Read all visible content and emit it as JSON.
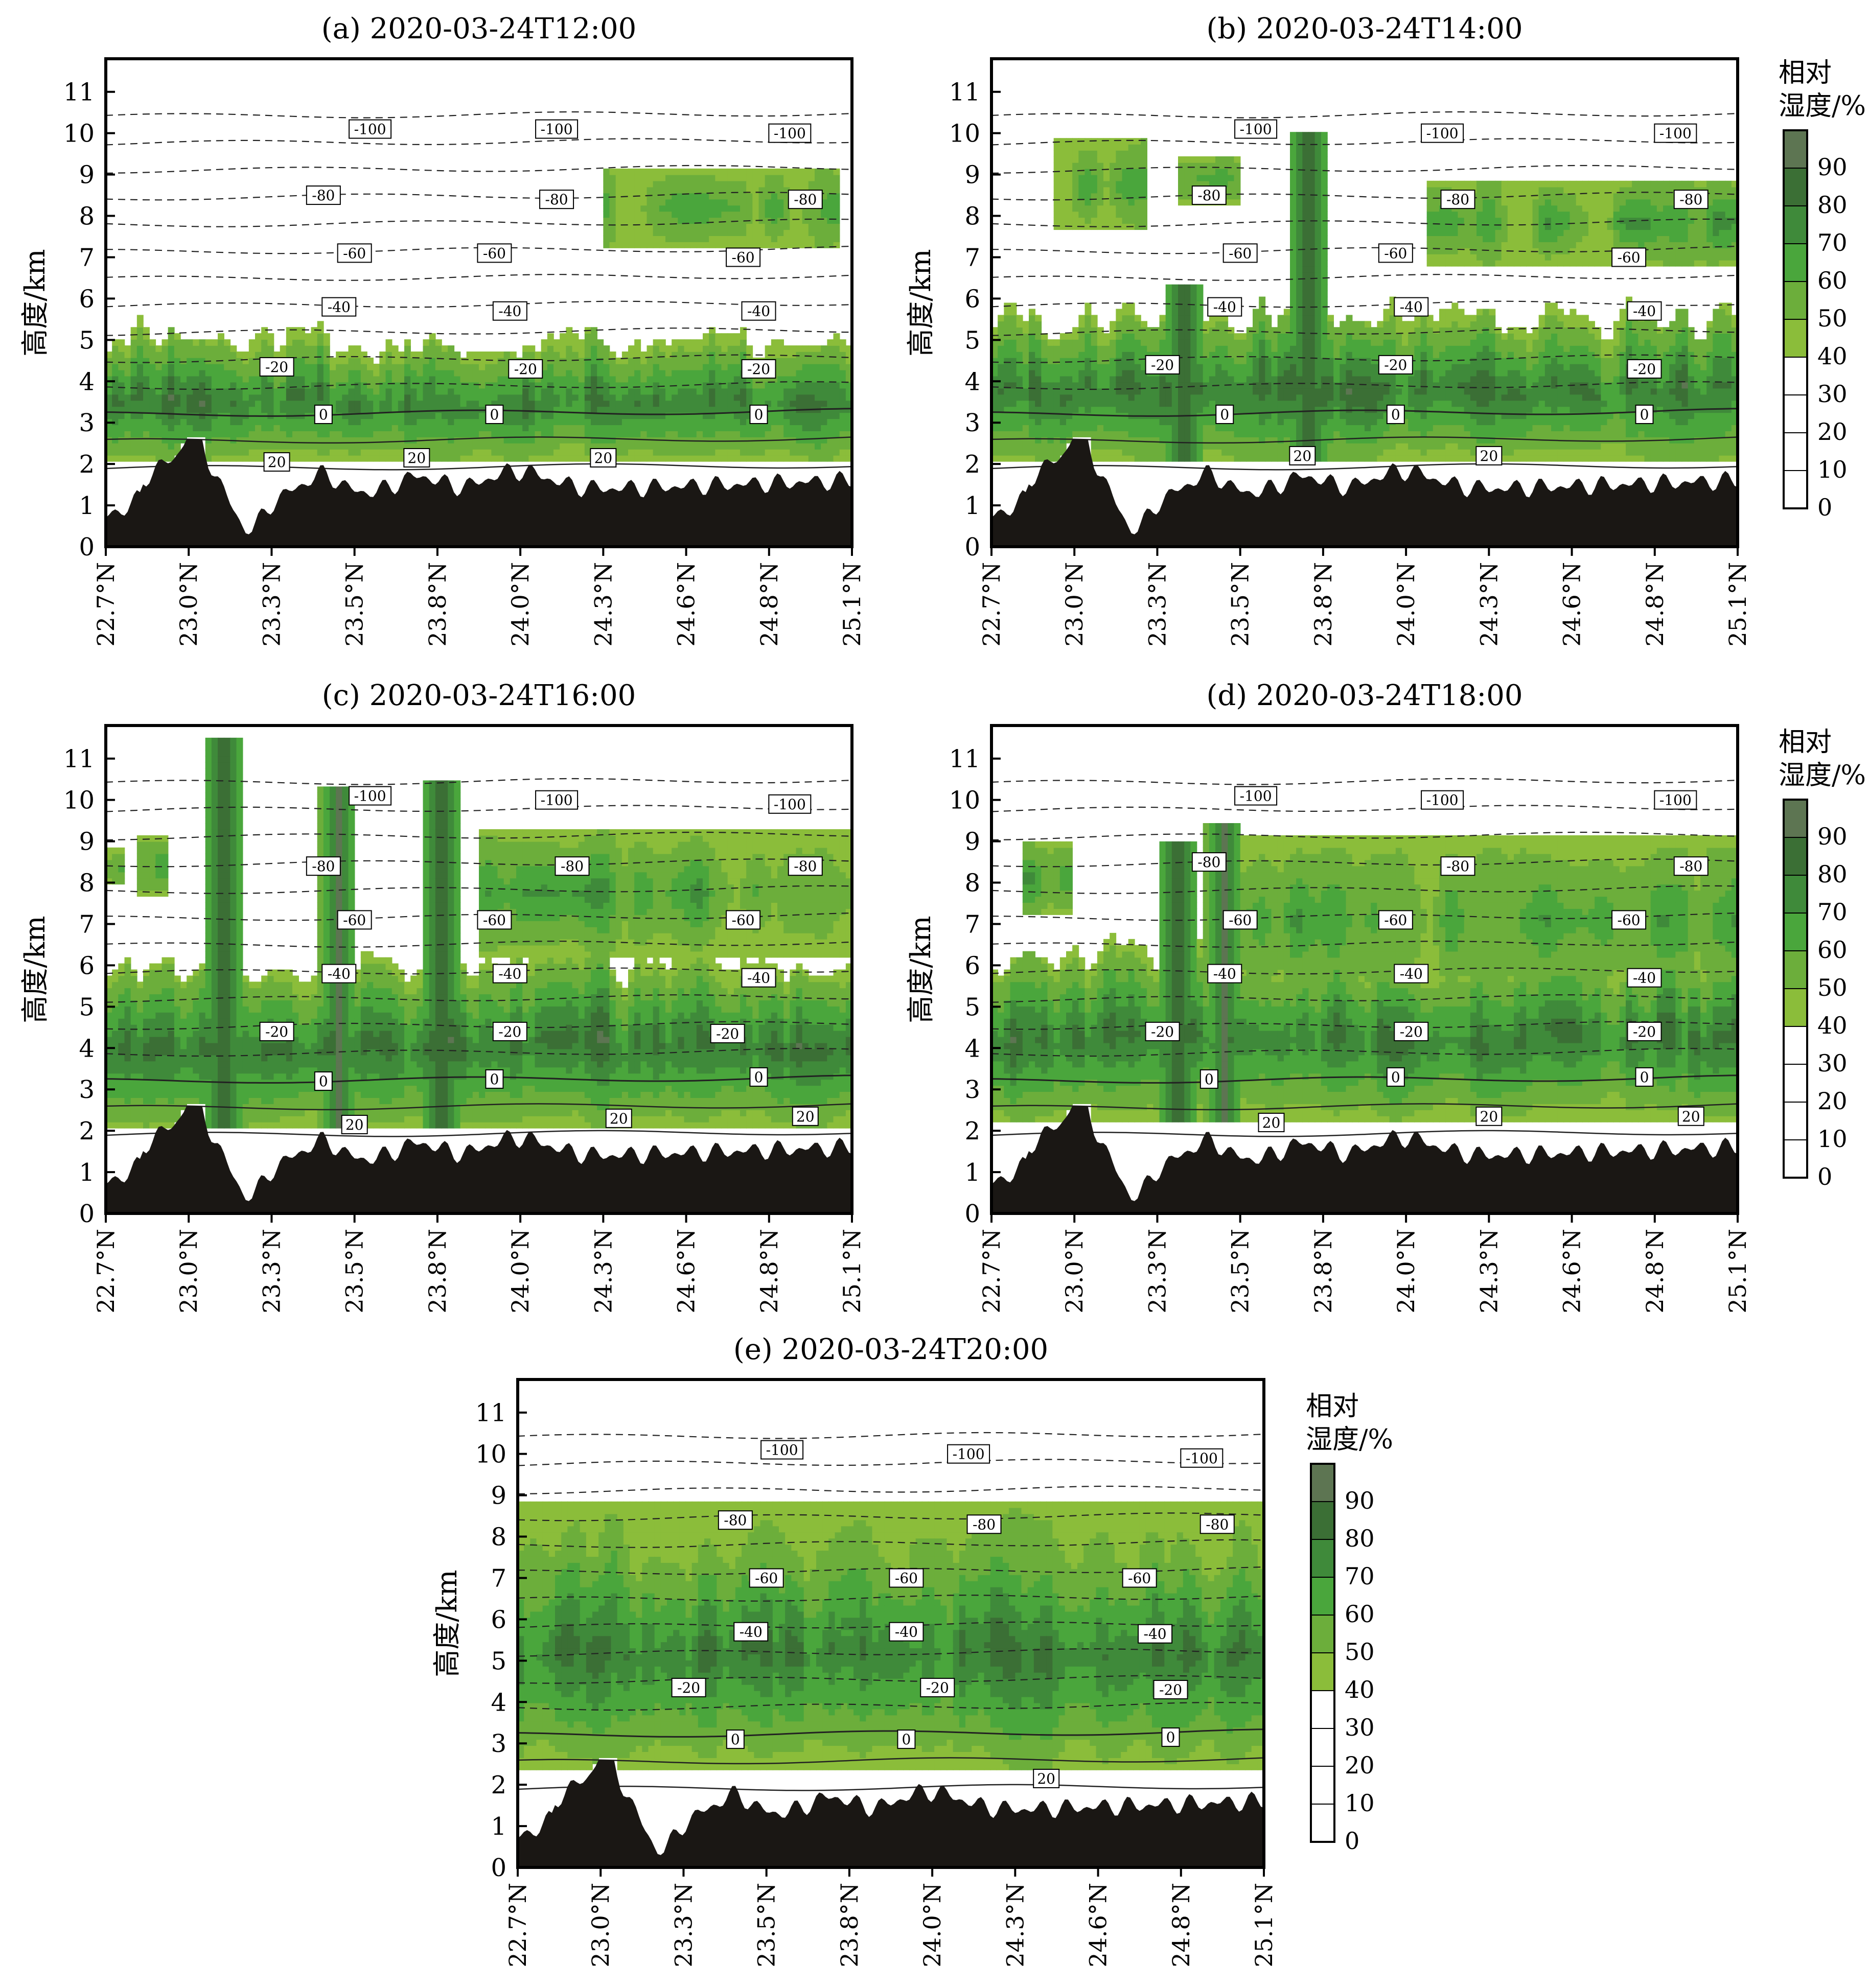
{
  "figure": {
    "colorbar_title_line1": "相对",
    "colorbar_title_line2": "湿度/%"
  },
  "colors": {
    "terrain": "#1a1714",
    "rh_bins": [
      "#ffffff",
      "#ffffff",
      "#ffffff",
      "#ffffff",
      "#8bbd3a",
      "#6cae3b",
      "#4aa63c",
      "#3f8a3a",
      "#3b6f35",
      "#5d7552"
    ]
  },
  "chart_data": [
    {
      "type": "contourf",
      "panel_id": "a",
      "title": "(a) 2020-03-24T12:00",
      "ylabel": "高度/km",
      "xlabel": "",
      "x_ticks": [
        "22.7°N",
        "23.0°N",
        "23.3°N",
        "23.5°N",
        "23.8°N",
        "24.0°N",
        "24.3°N",
        "24.6°N",
        "24.8°N",
        "25.1°N"
      ],
      "y_ticks": [
        0,
        1,
        2,
        3,
        4,
        5,
        6,
        7,
        8,
        9,
        10,
        11
      ],
      "xlim": [
        22.7,
        25.1
      ],
      "ylim": [
        0,
        11.8
      ],
      "colorbar": {
        "label": "相对湿度/%",
        "levels": [
          0,
          10,
          20,
          30,
          40,
          50,
          60,
          70,
          80,
          90,
          100
        ]
      },
      "temperature_contours_C": [
        20,
        0,
        -20,
        -40,
        -60,
        -80,
        -100
      ],
      "temperature_labels": [
        {
          "value": "-100",
          "x": 23.55,
          "z": 10.1
        },
        {
          "value": "-100",
          "x": 24.15,
          "z": 10.1
        },
        {
          "value": "-100",
          "x": 24.9,
          "z": 10.0
        },
        {
          "value": "-80",
          "x": 23.4,
          "z": 8.5
        },
        {
          "value": "-80",
          "x": 24.15,
          "z": 8.4
        },
        {
          "value": "-80",
          "x": 24.95,
          "z": 8.4
        },
        {
          "value": "-60",
          "x": 23.5,
          "z": 7.1
        },
        {
          "value": "-60",
          "x": 23.95,
          "z": 7.1
        },
        {
          "value": "-60",
          "x": 24.75,
          "z": 7.0
        },
        {
          "value": "-40",
          "x": 23.45,
          "z": 5.8
        },
        {
          "value": "-40",
          "x": 24.0,
          "z": 5.7
        },
        {
          "value": "-40",
          "x": 24.8,
          "z": 5.7
        },
        {
          "value": "-20",
          "x": 23.25,
          "z": 4.35
        },
        {
          "value": "-20",
          "x": 24.05,
          "z": 4.3
        },
        {
          "value": "-20",
          "x": 24.8,
          "z": 4.3
        },
        {
          "value": "0",
          "x": 23.4,
          "z": 3.2
        },
        {
          "value": "0",
          "x": 23.95,
          "z": 3.2
        },
        {
          "value": "0",
          "x": 24.8,
          "z": 3.2
        },
        {
          "value": "20",
          "x": 23.25,
          "z": 2.05
        },
        {
          "value": "20",
          "x": 23.7,
          "z": 2.15
        },
        {
          "value": "20",
          "x": 24.3,
          "z": 2.15
        }
      ],
      "moist_layer_km": [
        2.0,
        5.0
      ],
      "upper_moist_patches": [
        {
          "lat": [
            24.3,
            25.05
          ],
          "z": [
            7.2,
            9.2
          ]
        }
      ],
      "deep_convection": []
    },
    {
      "type": "contourf",
      "panel_id": "b",
      "title": "(b) 2020-03-24T14:00",
      "ylabel": "高度/km",
      "xlabel": "",
      "x_ticks": [
        "22.7°N",
        "23.0°N",
        "23.3°N",
        "23.5°N",
        "23.8°N",
        "24.0°N",
        "24.3°N",
        "24.6°N",
        "24.8°N",
        "25.1°N"
      ],
      "y_ticks": [
        0,
        1,
        2,
        3,
        4,
        5,
        6,
        7,
        8,
        9,
        10,
        11
      ],
      "xlim": [
        22.7,
        25.1
      ],
      "ylim": [
        0,
        11.8
      ],
      "colorbar": {
        "label": "相对湿度/%",
        "levels": [
          0,
          10,
          20,
          30,
          40,
          50,
          60,
          70,
          80,
          90,
          100
        ]
      },
      "temperature_contours_C": [
        20,
        0,
        -20,
        -40,
        -60,
        -80,
        -100
      ],
      "temperature_labels": [
        {
          "value": "-100",
          "x": 23.55,
          "z": 10.1
        },
        {
          "value": "-100",
          "x": 24.15,
          "z": 10.0
        },
        {
          "value": "-100",
          "x": 24.9,
          "z": 10.0
        },
        {
          "value": "-80",
          "x": 23.4,
          "z": 8.5
        },
        {
          "value": "-80",
          "x": 24.2,
          "z": 8.4
        },
        {
          "value": "-80",
          "x": 24.95,
          "z": 8.4
        },
        {
          "value": "-60",
          "x": 23.5,
          "z": 7.1
        },
        {
          "value": "-60",
          "x": 24.0,
          "z": 7.1
        },
        {
          "value": "-60",
          "x": 24.75,
          "z": 7.0
        },
        {
          "value": "-40",
          "x": 23.45,
          "z": 5.8
        },
        {
          "value": "-40",
          "x": 24.05,
          "z": 5.8
        },
        {
          "value": "-40",
          "x": 24.8,
          "z": 5.7
        },
        {
          "value": "-20",
          "x": 23.25,
          "z": 4.4
        },
        {
          "value": "-20",
          "x": 24.0,
          "z": 4.4
        },
        {
          "value": "-20",
          "x": 24.8,
          "z": 4.3
        },
        {
          "value": "0",
          "x": 23.45,
          "z": 3.2
        },
        {
          "value": "0",
          "x": 24.0,
          "z": 3.2
        },
        {
          "value": "0",
          "x": 24.8,
          "z": 3.2
        },
        {
          "value": "20",
          "x": 23.7,
          "z": 2.2
        },
        {
          "value": "20",
          "x": 24.3,
          "z": 2.2
        }
      ],
      "moist_layer_km": [
        2.0,
        5.5
      ],
      "upper_moist_patches": [
        {
          "lat": [
            22.9,
            23.2
          ],
          "z": [
            7.6,
            9.9
          ]
        },
        {
          "lat": [
            23.3,
            23.5
          ],
          "z": [
            8.3,
            9.5
          ]
        },
        {
          "lat": [
            24.1,
            25.1
          ],
          "z": [
            6.8,
            8.9
          ]
        }
      ],
      "deep_convection": [
        {
          "lat": 23.72,
          "top_km": 10.1
        },
        {
          "lat": 23.32,
          "top_km": 6.4
        }
      ]
    },
    {
      "type": "contourf",
      "panel_id": "c",
      "title": "(c) 2020-03-24T16:00",
      "ylabel": "高度/km",
      "xlabel": "",
      "x_ticks": [
        "22.7°N",
        "23.0°N",
        "23.3°N",
        "23.5°N",
        "23.8°N",
        "24.0°N",
        "24.3°N",
        "24.6°N",
        "24.8°N",
        "25.1°N"
      ],
      "y_ticks": [
        0,
        1,
        2,
        3,
        4,
        5,
        6,
        7,
        8,
        9,
        10,
        11
      ],
      "xlim": [
        22.7,
        25.1
      ],
      "ylim": [
        0,
        11.8
      ],
      "colorbar": {
        "label": "相对湿度/%",
        "levels": [
          0,
          10,
          20,
          30,
          40,
          50,
          60,
          70,
          80,
          90,
          100
        ]
      },
      "temperature_contours_C": [
        20,
        0,
        -20,
        -40,
        -60,
        -80,
        -100
      ],
      "temperature_labels": [
        {
          "value": "-100",
          "x": 23.55,
          "z": 10.1
        },
        {
          "value": "-100",
          "x": 24.15,
          "z": 10.0
        },
        {
          "value": "-100",
          "x": 24.9,
          "z": 9.9
        },
        {
          "value": "-80",
          "x": 23.4,
          "z": 8.4
        },
        {
          "value": "-80",
          "x": 24.2,
          "z": 8.4
        },
        {
          "value": "-80",
          "x": 24.95,
          "z": 8.4
        },
        {
          "value": "-60",
          "x": 23.5,
          "z": 7.1
        },
        {
          "value": "-60",
          "x": 23.95,
          "z": 7.1
        },
        {
          "value": "-60",
          "x": 24.75,
          "z": 7.1
        },
        {
          "value": "-40",
          "x": 23.45,
          "z": 5.8
        },
        {
          "value": "-40",
          "x": 24.0,
          "z": 5.8
        },
        {
          "value": "-40",
          "x": 24.8,
          "z": 5.7
        },
        {
          "value": "-20",
          "x": 23.25,
          "z": 4.4
        },
        {
          "value": "-20",
          "x": 24.0,
          "z": 4.4
        },
        {
          "value": "-20",
          "x": 24.7,
          "z": 4.35
        },
        {
          "value": "0",
          "x": 23.4,
          "z": 3.2
        },
        {
          "value": "0",
          "x": 23.95,
          "z": 3.25
        },
        {
          "value": "0",
          "x": 24.8,
          "z": 3.3
        },
        {
          "value": "20",
          "x": 23.5,
          "z": 2.15
        },
        {
          "value": "20",
          "x": 24.35,
          "z": 2.3
        },
        {
          "value": "20",
          "x": 24.95,
          "z": 2.35
        }
      ],
      "moist_layer_km": [
        2.0,
        6.0
      ],
      "upper_moist_patches": [
        {
          "lat": [
            22.7,
            22.75
          ],
          "z": [
            7.9,
            8.8
          ]
        },
        {
          "lat": [
            22.8,
            22.9
          ],
          "z": [
            7.7,
            9.1
          ]
        },
        {
          "lat": [
            23.9,
            25.1
          ],
          "z": [
            6.2,
            9.3
          ]
        }
      ],
      "deep_convection": [
        {
          "lat": 23.08,
          "top_km": 11.5
        },
        {
          "lat": 23.45,
          "top_km": 10.3
        },
        {
          "lat": 23.78,
          "top_km": 10.4
        }
      ]
    },
    {
      "type": "contourf",
      "panel_id": "d",
      "title": "(d) 2020-03-24T18:00",
      "ylabel": "高度/km",
      "xlabel": "",
      "x_ticks": [
        "22.7°N",
        "23.0°N",
        "23.3°N",
        "23.5°N",
        "23.8°N",
        "24.0°N",
        "24.3°N",
        "24.6°N",
        "24.8°N",
        "25.1°N"
      ],
      "y_ticks": [
        0,
        1,
        2,
        3,
        4,
        5,
        6,
        7,
        8,
        9,
        10,
        11
      ],
      "xlim": [
        22.7,
        25.1
      ],
      "ylim": [
        0,
        11.8
      ],
      "colorbar": {
        "label": "相对湿度/%",
        "levels": [
          0,
          10,
          20,
          30,
          40,
          50,
          60,
          70,
          80,
          90,
          100
        ]
      },
      "temperature_contours_C": [
        20,
        0,
        -20,
        -40,
        -60,
        -80,
        -100
      ],
      "temperature_labels": [
        {
          "value": "-100",
          "x": 23.55,
          "z": 10.1
        },
        {
          "value": "-100",
          "x": 24.15,
          "z": 10.0
        },
        {
          "value": "-100",
          "x": 24.9,
          "z": 10.0
        },
        {
          "value": "-80",
          "x": 23.4,
          "z": 8.5
        },
        {
          "value": "-80",
          "x": 24.2,
          "z": 8.4
        },
        {
          "value": "-80",
          "x": 24.95,
          "z": 8.4
        },
        {
          "value": "-60",
          "x": 23.5,
          "z": 7.1
        },
        {
          "value": "-60",
          "x": 24.0,
          "z": 7.1
        },
        {
          "value": "-60",
          "x": 24.75,
          "z": 7.1
        },
        {
          "value": "-40",
          "x": 23.45,
          "z": 5.8
        },
        {
          "value": "-40",
          "x": 24.05,
          "z": 5.8
        },
        {
          "value": "-40",
          "x": 24.8,
          "z": 5.7
        },
        {
          "value": "-20",
          "x": 23.25,
          "z": 4.4
        },
        {
          "value": "-20",
          "x": 24.05,
          "z": 4.4
        },
        {
          "value": "-20",
          "x": 24.8,
          "z": 4.4
        },
        {
          "value": "0",
          "x": 23.4,
          "z": 3.25
        },
        {
          "value": "0",
          "x": 24.0,
          "z": 3.3
        },
        {
          "value": "0",
          "x": 24.8,
          "z": 3.3
        },
        {
          "value": "20",
          "x": 23.6,
          "z": 2.2
        },
        {
          "value": "20",
          "x": 24.3,
          "z": 2.35
        },
        {
          "value": "20",
          "x": 24.95,
          "z": 2.35
        }
      ],
      "moist_layer_km": [
        2.2,
        6.2
      ],
      "upper_moist_patches": [
        {
          "lat": [
            22.8,
            22.95
          ],
          "z": [
            7.2,
            9.0
          ]
        },
        {
          "lat": [
            23.4,
            25.1
          ],
          "z": [
            5.0,
            9.2
          ]
        }
      ],
      "deep_convection": [
        {
          "lat": 23.3,
          "top_km": 9.0
        },
        {
          "lat": 23.45,
          "top_km": 9.4
        }
      ]
    },
    {
      "type": "contourf",
      "panel_id": "e",
      "title": "(e) 2020-03-24T20:00",
      "ylabel": "高度/km",
      "xlabel": "",
      "x_ticks": [
        "22.7°N",
        "23.0°N",
        "23.3°N",
        "23.5°N",
        "23.8°N",
        "24.0°N",
        "24.3°N",
        "24.6°N",
        "24.8°N",
        "25.1°N"
      ],
      "y_ticks": [
        0,
        1,
        2,
        3,
        4,
        5,
        6,
        7,
        8,
        9,
        10,
        11
      ],
      "xlim": [
        22.7,
        25.1
      ],
      "ylim": [
        0,
        11.8
      ],
      "colorbar": {
        "label": "相对湿度/%",
        "levels": [
          0,
          10,
          20,
          30,
          40,
          50,
          60,
          70,
          80,
          90,
          100
        ]
      },
      "temperature_contours_C": [
        20,
        0,
        -20,
        -40,
        -60,
        -80,
        -100
      ],
      "temperature_labels": [
        {
          "value": "-100",
          "x": 23.55,
          "z": 10.1
        },
        {
          "value": "-100",
          "x": 24.15,
          "z": 10.0
        },
        {
          "value": "-100",
          "x": 24.9,
          "z": 9.9
        },
        {
          "value": "-80",
          "x": 23.4,
          "z": 8.4
        },
        {
          "value": "-80",
          "x": 24.2,
          "z": 8.3
        },
        {
          "value": "-80",
          "x": 24.95,
          "z": 8.3
        },
        {
          "value": "-60",
          "x": 23.5,
          "z": 7.0
        },
        {
          "value": "-60",
          "x": 23.95,
          "z": 7.0
        },
        {
          "value": "-60",
          "x": 24.7,
          "z": 7.0
        },
        {
          "value": "-40",
          "x": 23.45,
          "z": 5.7
        },
        {
          "value": "-40",
          "x": 23.95,
          "z": 5.7
        },
        {
          "value": "-40",
          "x": 24.75,
          "z": 5.65
        },
        {
          "value": "-20",
          "x": 23.25,
          "z": 4.35
        },
        {
          "value": "-20",
          "x": 24.05,
          "z": 4.35
        },
        {
          "value": "-20",
          "x": 24.8,
          "z": 4.3
        },
        {
          "value": "0",
          "x": 23.4,
          "z": 3.1
        },
        {
          "value": "0",
          "x": 23.95,
          "z": 3.1
        },
        {
          "value": "0",
          "x": 24.8,
          "z": 3.15
        },
        {
          "value": "20",
          "x": 24.4,
          "z": 2.15
        }
      ],
      "moist_layer_km": [
        2.3,
        8.0
      ],
      "upper_moist_patches": [
        {
          "lat": [
            22.7,
            25.1
          ],
          "z": [
            3.0,
            8.8
          ]
        }
      ],
      "deep_convection": []
    }
  ]
}
